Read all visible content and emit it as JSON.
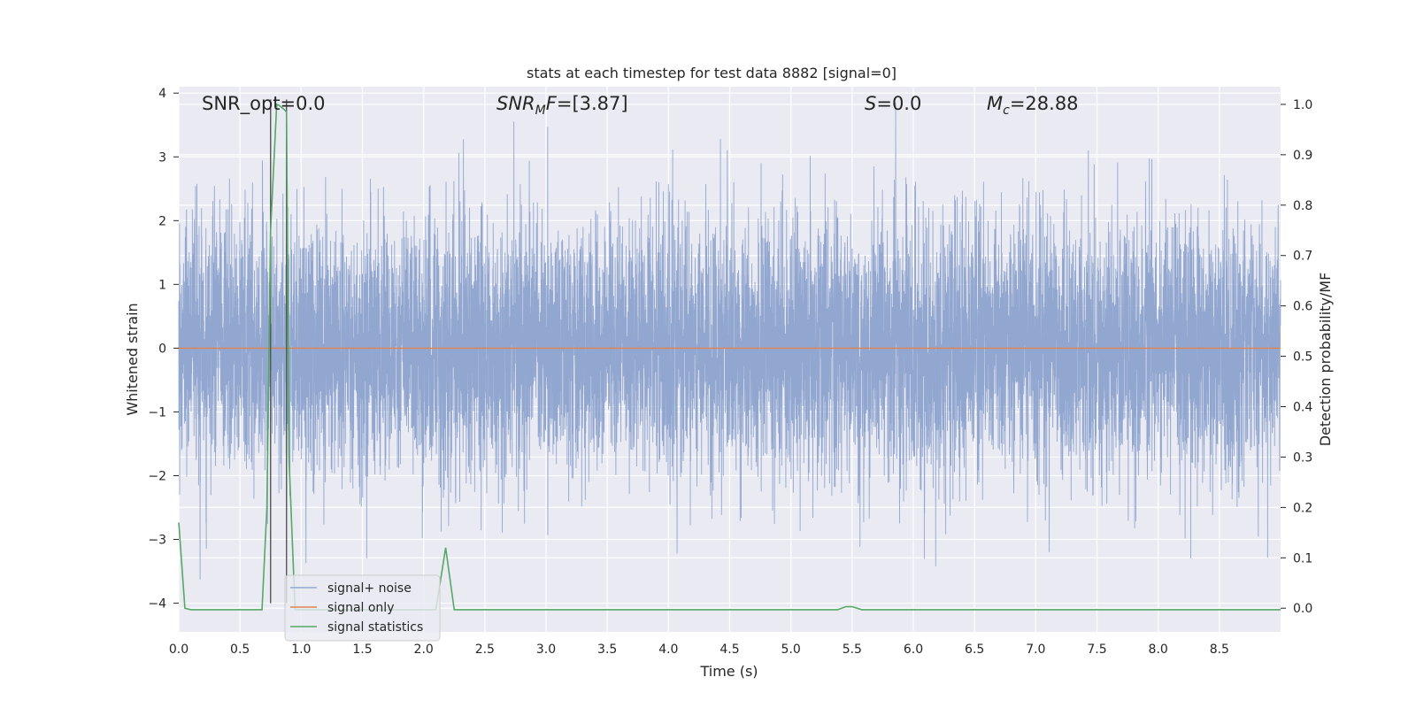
{
  "chart_data": {
    "type": "line",
    "title": "stats at each timestep for test data 8882 [signal=0]",
    "xlabel": "Time (s)",
    "ylabel": "Whitened strain",
    "ylabel_right": "Detection probability/MF",
    "xlim": [
      0.0,
      9.0
    ],
    "ylim": [
      -4.45,
      4.1
    ],
    "ylim_right": [
      -0.047,
      1.035
    ],
    "xticks": [
      "0.0",
      "0.5",
      "1.0",
      "1.5",
      "2.0",
      "2.5",
      "3.0",
      "3.5",
      "4.0",
      "4.5",
      "5.0",
      "5.5",
      "6.0",
      "6.5",
      "7.0",
      "7.5",
      "8.0",
      "8.5"
    ],
    "yticks": [
      "−4",
      "−3",
      "−2",
      "−1",
      "0",
      "1",
      "2",
      "3",
      "4"
    ],
    "yticks_right": [
      "0.0",
      "0.1",
      "0.2",
      "0.3",
      "0.4",
      "0.5",
      "0.6",
      "0.7",
      "0.8",
      "0.9",
      "1.0"
    ],
    "grid": true,
    "legend_position": "lower-left",
    "annotations": {
      "snr_opt": "SNR_opt=0.0",
      "snr_mf": "[3.87]",
      "s_value": "=0.0",
      "mc_value": "=28.88"
    },
    "series": [
      {
        "name": "signal+ noise",
        "color": "#92a7d0",
        "description_note": "",
        "noise_amplitude_std": 1.0,
        "n_points": 9000
      },
      {
        "name": "signal only",
        "color": "#dd8452",
        "constant_value": 0
      },
      {
        "name": "signal statistics",
        "color": "#55a868",
        "axis": "right",
        "points": [
          [
            0.0,
            0.17
          ],
          [
            0.05,
            0.0
          ],
          [
            0.1,
            -0.003
          ],
          [
            0.2,
            -0.003
          ],
          [
            0.3,
            -0.003
          ],
          [
            0.4,
            -0.003
          ],
          [
            0.5,
            -0.003
          ],
          [
            0.6,
            -0.003
          ],
          [
            0.68,
            -0.003
          ],
          [
            0.72,
            0.2
          ],
          [
            0.75,
            0.75
          ],
          [
            0.8,
            1.0
          ],
          [
            0.82,
            0.998
          ],
          [
            0.86,
            0.99
          ],
          [
            0.88,
            0.985
          ],
          [
            0.9,
            0.3
          ],
          [
            0.95,
            -0.003
          ],
          [
            1.0,
            -0.003
          ],
          [
            1.5,
            -0.003
          ],
          [
            2.0,
            -0.003
          ],
          [
            2.1,
            -0.003
          ],
          [
            2.18,
            0.12
          ],
          [
            2.25,
            -0.003
          ],
          [
            2.5,
            -0.003
          ],
          [
            3.0,
            -0.003
          ],
          [
            4.0,
            -0.003
          ],
          [
            5.0,
            -0.003
          ],
          [
            5.38,
            -0.003
          ],
          [
            5.45,
            0.003
          ],
          [
            5.5,
            0.003
          ],
          [
            5.58,
            -0.003
          ],
          [
            6.0,
            -0.003
          ],
          [
            7.0,
            -0.003
          ],
          [
            8.0,
            -0.003
          ],
          [
            9.0,
            -0.003
          ]
        ]
      }
    ],
    "vlines": [
      {
        "x": 0.75,
        "ymin": -4.0,
        "ymax": 3.9,
        "color": "#555555"
      },
      {
        "x": 0.88,
        "ymin": -4.0,
        "ymax": 3.9,
        "color": "#555555"
      }
    ]
  }
}
